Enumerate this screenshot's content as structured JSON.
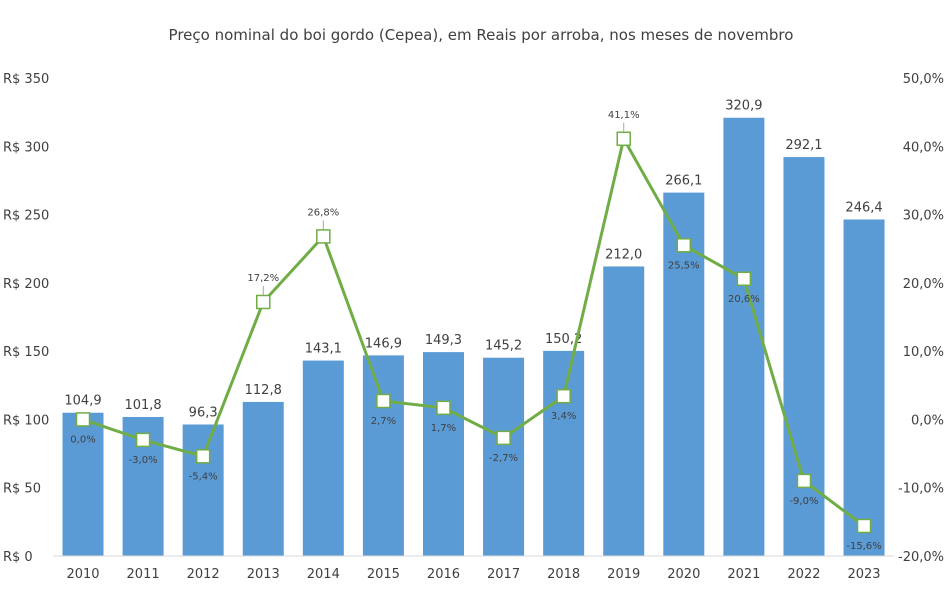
{
  "chart_data": {
    "type": "bar+line",
    "title": "Preço nominal do boi gordo (Cepea), em Reais por arroba, nos meses de novembro",
    "categories": [
      "2010",
      "2011",
      "2012",
      "2013",
      "2014",
      "2015",
      "2016",
      "2017",
      "2018",
      "2019",
      "2020",
      "2021",
      "2022",
      "2023"
    ],
    "series": [
      {
        "type": "bar",
        "axis": "left",
        "color": "#5B9BD5",
        "values": [
          104.9,
          101.8,
          96.3,
          112.8,
          143.1,
          146.9,
          149.3,
          145.2,
          150.2,
          212.0,
          266.1,
          320.9,
          292.1,
          246.4
        ],
        "labels": [
          "104,9",
          "101,8",
          "96,3",
          "112,8",
          "143,1",
          "146,9",
          "149,3",
          "145,2",
          "150,2",
          "212,0",
          "266,1",
          "320,9",
          "292,1",
          "246,4"
        ]
      },
      {
        "type": "line",
        "axis": "right",
        "color": "#70AD47",
        "marker": "square-hollow",
        "values": [
          0.0,
          -3.0,
          -5.4,
          17.2,
          26.8,
          2.7,
          1.7,
          -2.7,
          3.4,
          41.1,
          25.5,
          20.6,
          -9.0,
          -15.6
        ],
        "labels": [
          "0,0%",
          "-3,0%",
          "-5,4%",
          "17,2%",
          "26,8%",
          "2,7%",
          "1,7%",
          "-2,7%",
          "3,4%",
          "41,1%",
          "25,5%",
          "20,6%",
          "-9,0%",
          "-15,6%"
        ],
        "label_position": [
          "below",
          "below",
          "below",
          "above",
          "above",
          "below",
          "below",
          "below",
          "below",
          "above",
          "below",
          "below",
          "below",
          "below"
        ]
      }
    ],
    "left_axis": {
      "ylim": [
        0,
        350
      ],
      "ticks": [
        "R$ 0",
        "R$ 50",
        "R$ 100",
        "R$ 150",
        "R$ 200",
        "R$ 250",
        "R$ 300",
        "R$ 350"
      ]
    },
    "right_axis": {
      "ylim": [
        -20,
        50
      ],
      "ticks": [
        "-20,0%",
        "-10,0%",
        "0,0%",
        "10,0%",
        "20,0%",
        "30,0%",
        "40,0%",
        "50,0%"
      ]
    },
    "grid": false,
    "legend": "none"
  }
}
